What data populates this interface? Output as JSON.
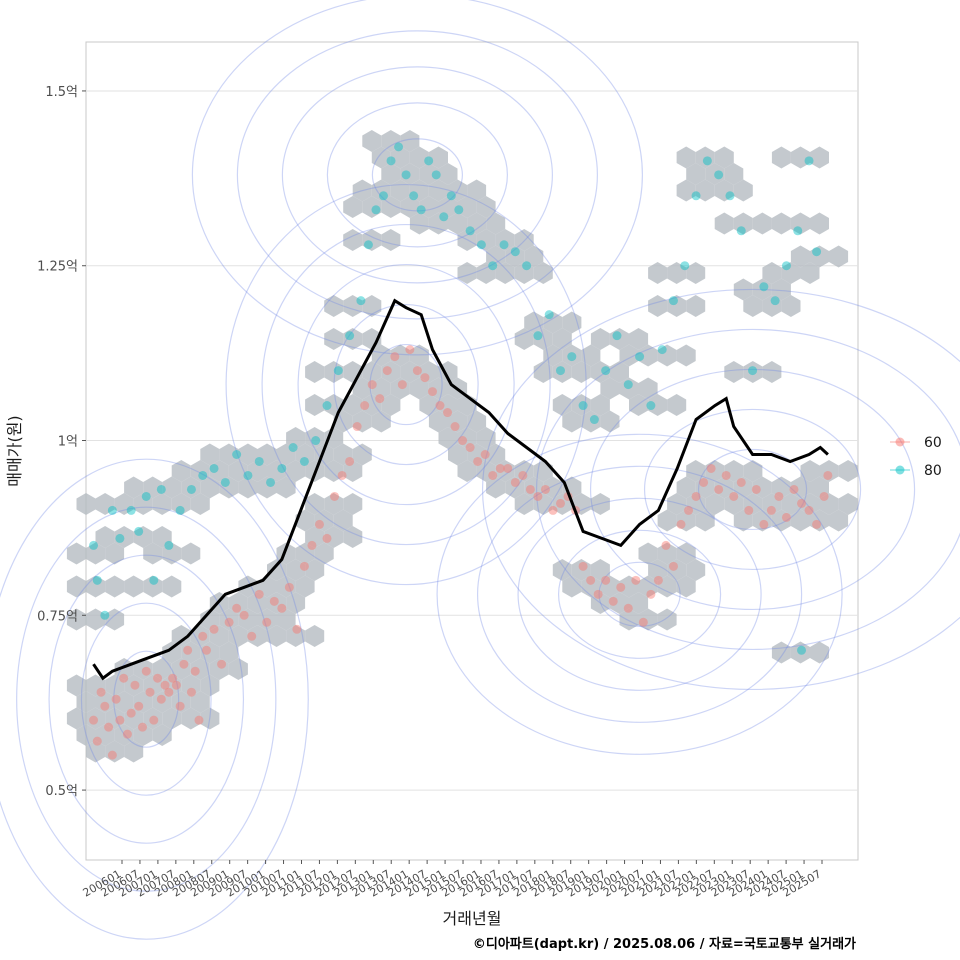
{
  "chart_data": {
    "type": "scatter",
    "title": "",
    "xlabel": "거래년월",
    "ylabel": "매매가(원)",
    "caption": "©디아파트(dapt.kr) / 2025.08.06 / 자료=국토교통부 실거래가",
    "ylim": [
      0.4,
      1.57
    ],
    "xlim": [
      2005.8,
      2026.3
    ],
    "y_ticks": [
      {
        "value": 0.5,
        "label": "0.5억"
      },
      {
        "value": 0.75,
        "label": "0.75억"
      },
      {
        "value": 1.0,
        "label": "1억"
      },
      {
        "value": 1.25,
        "label": "1.25억"
      },
      {
        "value": 1.5,
        "label": "1.5억"
      }
    ],
    "x_tick_labels": [
      "200601",
      "200607",
      "200701",
      "200707",
      "200801",
      "200807",
      "200901",
      "200907",
      "201001",
      "201007",
      "201101",
      "201107",
      "201201",
      "201207",
      "201301",
      "201307",
      "201401",
      "201407",
      "201501",
      "201507",
      "201601",
      "201607",
      "201701",
      "201707",
      "201801",
      "201807",
      "201901",
      "201907",
      "202001",
      "202007",
      "202101",
      "202107",
      "202201",
      "202207",
      "202301",
      "202307",
      "202401",
      "202407",
      "202501",
      "202507"
    ],
    "legend": {
      "position": "right",
      "entries": [
        {
          "label": "60",
          "color": "#F8766D"
        },
        {
          "label": "80",
          "color": "#00BFC4"
        }
      ]
    },
    "series": [
      {
        "name": "60",
        "color": "#F8766D",
        "points": [
          [
            2006.0,
            0.6
          ],
          [
            2006.1,
            0.57
          ],
          [
            2006.2,
            0.64
          ],
          [
            2006.3,
            0.62
          ],
          [
            2006.4,
            0.59
          ],
          [
            2006.5,
            0.55
          ],
          [
            2006.6,
            0.63
          ],
          [
            2006.7,
            0.6
          ],
          [
            2006.8,
            0.66
          ],
          [
            2006.9,
            0.58
          ],
          [
            2007.0,
            0.61
          ],
          [
            2007.1,
            0.65
          ],
          [
            2007.2,
            0.62
          ],
          [
            2007.3,
            0.59
          ],
          [
            2007.4,
            0.67
          ],
          [
            2007.5,
            0.64
          ],
          [
            2007.6,
            0.6
          ],
          [
            2007.7,
            0.66
          ],
          [
            2007.8,
            0.63
          ],
          [
            2007.9,
            0.65
          ],
          [
            2008.0,
            0.64
          ],
          [
            2008.1,
            0.66
          ],
          [
            2008.2,
            0.65
          ],
          [
            2008.3,
            0.62
          ],
          [
            2008.4,
            0.68
          ],
          [
            2008.5,
            0.7
          ],
          [
            2008.6,
            0.64
          ],
          [
            2008.7,
            0.67
          ],
          [
            2008.8,
            0.6
          ],
          [
            2008.9,
            0.72
          ],
          [
            2009.0,
            0.7
          ],
          [
            2009.2,
            0.73
          ],
          [
            2009.4,
            0.68
          ],
          [
            2009.6,
            0.74
          ],
          [
            2009.8,
            0.76
          ],
          [
            2010.0,
            0.75
          ],
          [
            2010.2,
            0.72
          ],
          [
            2010.4,
            0.78
          ],
          [
            2010.6,
            0.74
          ],
          [
            2010.8,
            0.77
          ],
          [
            2011.0,
            0.76
          ],
          [
            2011.2,
            0.79
          ],
          [
            2011.4,
            0.73
          ],
          [
            2011.6,
            0.82
          ],
          [
            2011.8,
            0.85
          ],
          [
            2012.0,
            0.88
          ],
          [
            2012.2,
            0.86
          ],
          [
            2012.4,
            0.92
          ],
          [
            2012.6,
            0.95
          ],
          [
            2012.8,
            0.97
          ],
          [
            2013.0,
            1.02
          ],
          [
            2013.2,
            1.05
          ],
          [
            2013.4,
            1.08
          ],
          [
            2013.6,
            1.06
          ],
          [
            2013.8,
            1.1
          ],
          [
            2014.0,
            1.12
          ],
          [
            2014.2,
            1.08
          ],
          [
            2014.4,
            1.13
          ],
          [
            2014.6,
            1.1
          ],
          [
            2014.8,
            1.09
          ],
          [
            2015.0,
            1.07
          ],
          [
            2015.2,
            1.05
          ],
          [
            2015.4,
            1.04
          ],
          [
            2015.6,
            1.02
          ],
          [
            2015.8,
            1.0
          ],
          [
            2016.0,
            0.99
          ],
          [
            2016.2,
            0.97
          ],
          [
            2016.4,
            0.98
          ],
          [
            2016.6,
            0.95
          ],
          [
            2016.8,
            0.96
          ],
          [
            2017.0,
            0.96
          ],
          [
            2017.2,
            0.94
          ],
          [
            2017.4,
            0.95
          ],
          [
            2017.6,
            0.93
          ],
          [
            2017.8,
            0.92
          ],
          [
            2018.0,
            0.93
          ],
          [
            2018.2,
            0.9
          ],
          [
            2018.4,
            0.91
          ],
          [
            2018.6,
            0.92
          ],
          [
            2018.8,
            0.9
          ],
          [
            2019.0,
            0.82
          ],
          [
            2019.2,
            0.8
          ],
          [
            2019.4,
            0.78
          ],
          [
            2019.6,
            0.8
          ],
          [
            2019.8,
            0.77
          ],
          [
            2020.0,
            0.79
          ],
          [
            2020.2,
            0.76
          ],
          [
            2020.4,
            0.8
          ],
          [
            2020.6,
            0.74
          ],
          [
            2020.8,
            0.78
          ],
          [
            2021.0,
            0.8
          ],
          [
            2021.2,
            0.85
          ],
          [
            2021.4,
            0.82
          ],
          [
            2021.6,
            0.88
          ],
          [
            2021.8,
            0.9
          ],
          [
            2022.0,
            0.92
          ],
          [
            2022.2,
            0.94
          ],
          [
            2022.4,
            0.96
          ],
          [
            2022.6,
            0.93
          ],
          [
            2022.8,
            0.95
          ],
          [
            2023.0,
            0.92
          ],
          [
            2023.2,
            0.94
          ],
          [
            2023.4,
            0.9
          ],
          [
            2023.6,
            0.93
          ],
          [
            2023.8,
            0.88
          ],
          [
            2024.0,
            0.9
          ],
          [
            2024.2,
            0.92
          ],
          [
            2024.4,
            0.89
          ],
          [
            2024.6,
            0.93
          ],
          [
            2024.8,
            0.91
          ],
          [
            2025.0,
            0.9
          ],
          [
            2025.2,
            0.88
          ],
          [
            2025.4,
            0.92
          ],
          [
            2025.5,
            0.95
          ]
        ]
      },
      {
        "name": "80",
        "color": "#00BFC4",
        "points": [
          [
            2006.0,
            0.85
          ],
          [
            2006.1,
            0.8
          ],
          [
            2006.3,
            0.75
          ],
          [
            2006.5,
            0.9
          ],
          [
            2006.7,
            0.86
          ],
          [
            2007.0,
            0.9
          ],
          [
            2007.2,
            0.87
          ],
          [
            2007.4,
            0.92
          ],
          [
            2007.6,
            0.8
          ],
          [
            2007.8,
            0.93
          ],
          [
            2008.0,
            0.85
          ],
          [
            2008.3,
            0.9
          ],
          [
            2008.6,
            0.93
          ],
          [
            2008.9,
            0.95
          ],
          [
            2009.2,
            0.96
          ],
          [
            2009.5,
            0.94
          ],
          [
            2009.8,
            0.98
          ],
          [
            2010.1,
            0.95
          ],
          [
            2010.4,
            0.97
          ],
          [
            2010.7,
            0.94
          ],
          [
            2011.0,
            0.96
          ],
          [
            2011.3,
            0.99
          ],
          [
            2011.6,
            0.97
          ],
          [
            2011.9,
            1.0
          ],
          [
            2012.2,
            1.05
          ],
          [
            2012.5,
            1.1
          ],
          [
            2012.8,
            1.15
          ],
          [
            2013.1,
            1.2
          ],
          [
            2013.3,
            1.28
          ],
          [
            2013.5,
            1.33
          ],
          [
            2013.7,
            1.35
          ],
          [
            2013.9,
            1.4
          ],
          [
            2014.1,
            1.42
          ],
          [
            2014.3,
            1.38
          ],
          [
            2014.5,
            1.35
          ],
          [
            2014.7,
            1.33
          ],
          [
            2014.9,
            1.4
          ],
          [
            2015.1,
            1.38
          ],
          [
            2015.3,
            1.32
          ],
          [
            2015.5,
            1.35
          ],
          [
            2015.7,
            1.33
          ],
          [
            2016.0,
            1.3
          ],
          [
            2016.3,
            1.28
          ],
          [
            2016.6,
            1.25
          ],
          [
            2016.9,
            1.28
          ],
          [
            2017.2,
            1.27
          ],
          [
            2017.5,
            1.25
          ],
          [
            2017.8,
            1.15
          ],
          [
            2018.1,
            1.18
          ],
          [
            2018.4,
            1.1
          ],
          [
            2018.7,
            1.12
          ],
          [
            2019.0,
            1.05
          ],
          [
            2019.3,
            1.03
          ],
          [
            2019.6,
            1.1
          ],
          [
            2019.9,
            1.15
          ],
          [
            2020.2,
            1.08
          ],
          [
            2020.5,
            1.12
          ],
          [
            2020.8,
            1.05
          ],
          [
            2021.1,
            1.13
          ],
          [
            2021.4,
            1.2
          ],
          [
            2021.7,
            1.25
          ],
          [
            2022.0,
            1.35
          ],
          [
            2022.3,
            1.4
          ],
          [
            2022.6,
            1.38
          ],
          [
            2022.9,
            1.35
          ],
          [
            2023.2,
            1.3
          ],
          [
            2023.5,
            1.1
          ],
          [
            2023.8,
            1.22
          ],
          [
            2024.1,
            1.2
          ],
          [
            2024.4,
            1.25
          ],
          [
            2024.7,
            1.3
          ],
          [
            2025.0,
            1.4
          ],
          [
            2025.2,
            1.27
          ],
          [
            2024.8,
            0.7
          ]
        ]
      },
      {
        "name": "moving-average",
        "color": "#000000",
        "points": [
          [
            2006.0,
            0.68
          ],
          [
            2006.25,
            0.66
          ],
          [
            2006.5,
            0.67
          ],
          [
            2007.0,
            0.68
          ],
          [
            2007.5,
            0.69
          ],
          [
            2008.0,
            0.7
          ],
          [
            2008.5,
            0.72
          ],
          [
            2009.0,
            0.75
          ],
          [
            2009.5,
            0.78
          ],
          [
            2010.0,
            0.79
          ],
          [
            2010.5,
            0.8
          ],
          [
            2011.0,
            0.83
          ],
          [
            2011.5,
            0.9
          ],
          [
            2012.0,
            0.97
          ],
          [
            2012.5,
            1.04
          ],
          [
            2013.0,
            1.09
          ],
          [
            2013.5,
            1.14
          ],
          [
            2014.0,
            1.2
          ],
          [
            2014.3,
            1.19
          ],
          [
            2014.7,
            1.18
          ],
          [
            2015.0,
            1.13
          ],
          [
            2015.5,
            1.08
          ],
          [
            2016.0,
            1.06
          ],
          [
            2016.5,
            1.04
          ],
          [
            2017.0,
            1.01
          ],
          [
            2017.5,
            0.99
          ],
          [
            2018.0,
            0.97
          ],
          [
            2018.5,
            0.94
          ],
          [
            2019.0,
            0.87
          ],
          [
            2019.5,
            0.86
          ],
          [
            2020.0,
            0.85
          ],
          [
            2020.5,
            0.88
          ],
          [
            2021.0,
            0.9
          ],
          [
            2021.5,
            0.96
          ],
          [
            2022.0,
            1.03
          ],
          [
            2022.5,
            1.05
          ],
          [
            2022.8,
            1.06
          ],
          [
            2023.0,
            1.02
          ],
          [
            2023.5,
            0.98
          ],
          [
            2024.0,
            0.98
          ],
          [
            2024.5,
            0.97
          ],
          [
            2025.0,
            0.98
          ],
          [
            2025.3,
            0.99
          ],
          [
            2025.5,
            0.98
          ]
        ]
      }
    ]
  }
}
